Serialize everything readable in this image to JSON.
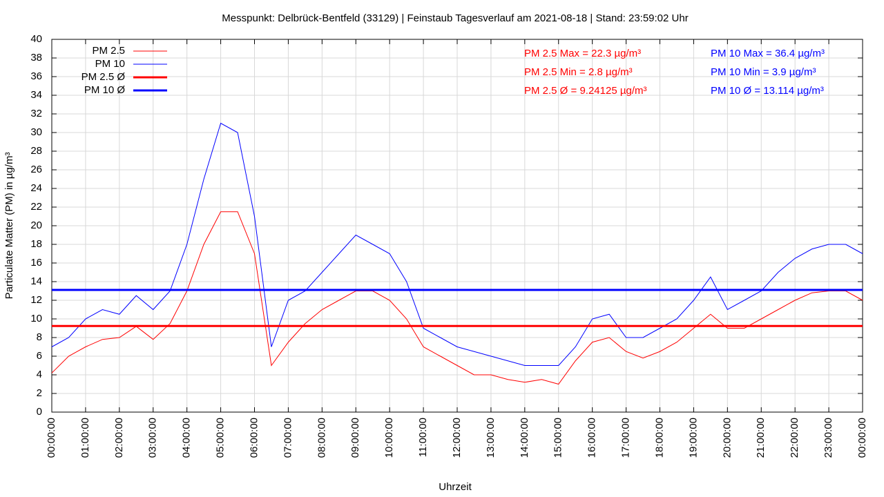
{
  "chart_data": {
    "type": "line",
    "title": "Messpunkt: Delbrück-Bentfeld (33129) | Feinstaub Tagesverlauf am 2021-08-18 | Stand: 23:59:02 Uhr",
    "xlabel": "Uhrzeit",
    "ylabel": "Particulate Matter (PM) in µg/m³",
    "x": [
      0,
      0.5,
      1,
      1.5,
      2,
      2.5,
      3,
      3.5,
      4,
      4.5,
      5,
      5.5,
      6,
      6.5,
      7,
      7.5,
      8,
      8.5,
      9,
      9.5,
      10,
      10.5,
      11,
      11.5,
      12,
      12.5,
      13,
      13.5,
      14,
      14.5,
      15,
      15.5,
      16,
      16.5,
      17,
      17.5,
      18,
      18.5,
      19,
      19.5,
      20,
      20.5,
      21,
      21.5,
      22,
      22.5,
      23,
      23.5,
      24
    ],
    "series": [
      {
        "name": "PM 2.5",
        "color": "#ff0000",
        "values": [
          4.2,
          6,
          7,
          7.8,
          8,
          9.2,
          7.8,
          9.5,
          13,
          18,
          21.5,
          21.5,
          17,
          5,
          7.5,
          9.5,
          11,
          12,
          13,
          13,
          12,
          10,
          7,
          6,
          5,
          4,
          4,
          3.5,
          3.2,
          3.5,
          3,
          5.5,
          7.5,
          8,
          6.5,
          5.8,
          6.5,
          7.5,
          9,
          10.5,
          9,
          9,
          10,
          11,
          12,
          12.8,
          13,
          13,
          12
        ]
      },
      {
        "name": "PM 10",
        "color": "#0000ff",
        "values": [
          7,
          8,
          10,
          11,
          10.5,
          12.5,
          11,
          13,
          18,
          25,
          31,
          30,
          21,
          7,
          12,
          13,
          15,
          17,
          19,
          18,
          17,
          14,
          9,
          8,
          7,
          6.5,
          6,
          5.5,
          5,
          5,
          5,
          7,
          10,
          10.5,
          8,
          8,
          9,
          10,
          12,
          14.5,
          11,
          12,
          13,
          15,
          16.5,
          17.5,
          18,
          18,
          17
        ]
      }
    ],
    "mean_lines": [
      {
        "name": "PM 2.5 Ø",
        "color": "#ff0000",
        "value": 9.24125
      },
      {
        "name": "PM 10 Ø",
        "color": "#0000ff",
        "value": 13.114
      }
    ],
    "annotations": [
      {
        "text": "PM 2.5 Max = 22.3 µg/m³",
        "color": "#ff0000"
      },
      {
        "text": "PM 2.5 Min = 2.8 µg/m³",
        "color": "#ff0000"
      },
      {
        "text": "PM 2.5 Ø = 9.24125 µg/m³",
        "color": "#ff0000"
      },
      {
        "text": "PM 10 Max = 36.4 µg/m³",
        "color": "#0000ff"
      },
      {
        "text": "PM 10 Min = 3.9 µg/m³",
        "color": "#0000ff"
      },
      {
        "text": "PM 10 Ø = 13.114 µg/m³",
        "color": "#0000ff"
      }
    ],
    "xlim": [
      0,
      24
    ],
    "xticks": [
      {
        "value": 0,
        "label": "00:00:00"
      },
      {
        "value": 1,
        "label": "01:00:00"
      },
      {
        "value": 2,
        "label": "02:00:00"
      },
      {
        "value": 3,
        "label": "03:00:00"
      },
      {
        "value": 4,
        "label": "04:00:00"
      },
      {
        "value": 5,
        "label": "05:00:00"
      },
      {
        "value": 6,
        "label": "06:00:00"
      },
      {
        "value": 7,
        "label": "07:00:00"
      },
      {
        "value": 8,
        "label": "08:00:00"
      },
      {
        "value": 9,
        "label": "09:00:00"
      },
      {
        "value": 10,
        "label": "10:00:00"
      },
      {
        "value": 11,
        "label": "11:00:00"
      },
      {
        "value": 12,
        "label": "12:00:00"
      },
      {
        "value": 13,
        "label": "13:00:00"
      },
      {
        "value": 14,
        "label": "14:00:00"
      },
      {
        "value": 15,
        "label": "15:00:00"
      },
      {
        "value": 16,
        "label": "16:00:00"
      },
      {
        "value": 17,
        "label": "17:00:00"
      },
      {
        "value": 18,
        "label": "18:00:00"
      },
      {
        "value": 19,
        "label": "19:00:00"
      },
      {
        "value": 20,
        "label": "20:00:00"
      },
      {
        "value": 21,
        "label": "21:00:00"
      },
      {
        "value": 22,
        "label": "22:00:00"
      },
      {
        "value": 23,
        "label": "23:00:00"
      },
      {
        "value": 24,
        "label": "00:00:00"
      }
    ],
    "ylim": [
      0,
      40
    ],
    "yticks": [
      0,
      2,
      4,
      6,
      8,
      10,
      12,
      14,
      16,
      18,
      20,
      22,
      24,
      26,
      28,
      30,
      32,
      34,
      36,
      38,
      40
    ],
    "grid": true,
    "legend": "top-left"
  }
}
